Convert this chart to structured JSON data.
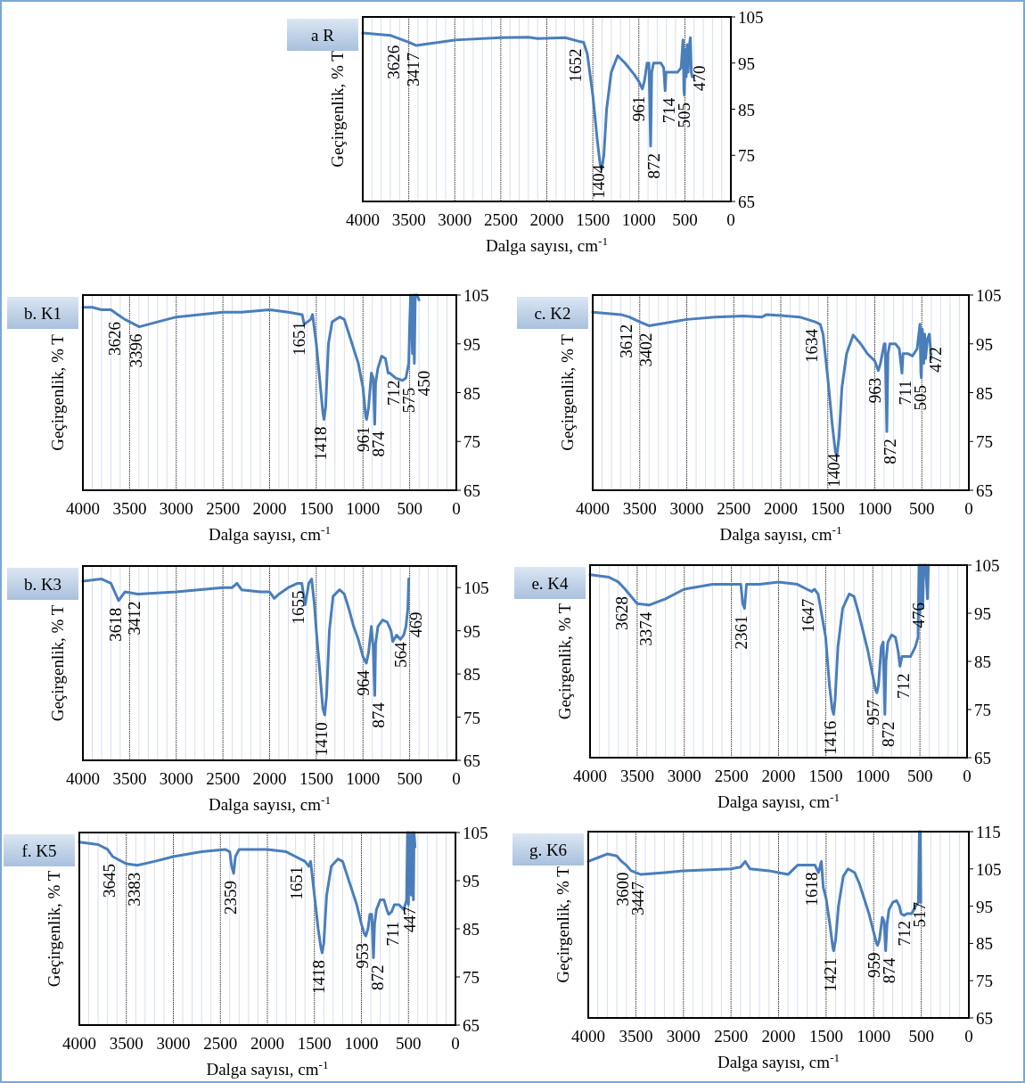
{
  "chart_data": [
    {
      "type": "line",
      "title": "a R",
      "xlabel": "Dalga sayısı, cm$^{-1}$",
      "ylabel": "Geçirgenlik, % T",
      "xlim": [
        4000,
        0
      ],
      "xticks": [
        4000,
        3500,
        3000,
        2500,
        2000,
        1500,
        1000,
        500,
        0
      ],
      "ylim": [
        65,
        105
      ],
      "yticks": [
        65,
        75,
        85,
        95,
        105
      ],
      "grid": "x",
      "color": "#4a7ebb",
      "x": [
        4000,
        3700,
        3500,
        3417,
        3000,
        2500,
        2200,
        2100,
        1800,
        1652,
        1600,
        1560,
        1500,
        1450,
        1420,
        1404,
        1380,
        1350,
        1300,
        1230,
        1150,
        1050,
        1000,
        961,
        940,
        910,
        890,
        872,
        860,
        840,
        760,
        730,
        714,
        705,
        650,
        580,
        540,
        520,
        510,
        505,
        495,
        485,
        475,
        465,
        450,
        440,
        430,
        420
      ],
      "values": [
        101.5,
        101,
        99.5,
        98.8,
        100,
        100.5,
        100.6,
        100.3,
        100.5,
        99.7,
        99.5,
        97,
        88,
        78,
        73,
        72,
        75,
        85,
        93,
        96.6,
        95,
        92.5,
        91,
        89.4,
        91,
        95,
        95,
        77,
        93,
        95,
        95,
        94,
        89,
        93,
        93,
        93,
        94,
        100,
        89,
        88,
        98,
        92,
        99,
        93,
        99,
        100.5,
        93,
        92
      ],
      "annotations": [
        {
          "text": "3626",
          "x": 3626,
          "y": 100.4
        },
        {
          "text": "3417",
          "x": 3417,
          "y": 98.8
        },
        {
          "text": "1652",
          "x": 1652,
          "y": 99.7
        },
        {
          "text": "1404",
          "x": 1404,
          "y": 72
        },
        {
          "text": "961",
          "x": 961,
          "y": 89.4
        },
        {
          "text": "872",
          "x": 872,
          "y": 77
        },
        {
          "text": "714",
          "x": 714,
          "y": 89
        },
        {
          "text": "505",
          "x": 505,
          "y": 88
        },
        {
          "text": "470",
          "x": 470,
          "y": 96
        }
      ]
    },
    {
      "type": "line",
      "title": "b. K1",
      "xlabel": "Dalga sayısı, cm$^{-1}$",
      "ylabel": "Geçirgenlik, % T",
      "xlim": [
        4000,
        0
      ],
      "xticks": [
        4000,
        3500,
        3000,
        2500,
        2000,
        1500,
        1000,
        500,
        0
      ],
      "ylim": [
        65,
        105
      ],
      "yticks": [
        65,
        75,
        85,
        95,
        105
      ],
      "grid": "x",
      "color": "#4a7ebb",
      "x": [
        4000,
        3900,
        3800,
        3700,
        3626,
        3550,
        3396,
        3200,
        3000,
        2500,
        2300,
        2000,
        1800,
        1651,
        1630,
        1560,
        1540,
        1500,
        1460,
        1430,
        1418,
        1400,
        1370,
        1330,
        1250,
        1200,
        1150,
        1100,
        1050,
        1000,
        970,
        961,
        940,
        910,
        890,
        874,
        865,
        840,
        800,
        760,
        730,
        712,
        650,
        575,
        540,
        510,
        500,
        490,
        470,
        460,
        450,
        440,
        420,
        400
      ],
      "values": [
        102.5,
        102.5,
        102,
        102,
        101,
        100,
        98.5,
        99.5,
        100.5,
        101.5,
        101.5,
        102,
        101.5,
        101,
        99,
        100,
        101,
        95,
        87,
        81,
        79.5,
        82,
        95,
        99.5,
        100.5,
        100,
        97,
        94,
        91,
        86,
        80,
        79.5,
        82,
        89,
        88,
        78.5,
        87,
        90,
        92.5,
        92,
        89,
        89,
        88,
        87.5,
        88,
        91,
        99,
        105,
        93,
        105,
        91,
        105,
        105,
        104
      ],
      "annotations": [
        {
          "text": "3626",
          "x": 3626,
          "y": 101
        },
        {
          "text": "3396",
          "x": 3396,
          "y": 98.5
        },
        {
          "text": "1651",
          "x": 1651,
          "y": 101
        },
        {
          "text": "1418",
          "x": 1418,
          "y": 79.5
        },
        {
          "text": "961",
          "x": 961,
          "y": 79.5
        },
        {
          "text": "874",
          "x": 874,
          "y": 78.5
        },
        {
          "text": "712",
          "x": 712,
          "y": 89
        },
        {
          "text": "575",
          "x": 575,
          "y": 87.5
        },
        {
          "text": "450",
          "x": 450,
          "y": 91
        }
      ]
    },
    {
      "type": "line",
      "title": "c. K2",
      "xlabel": "Dalga sayısı, cm$^{-1}$",
      "ylabel": "Geçirgenlik, % T",
      "xlim": [
        4000,
        0
      ],
      "xticks": [
        4000,
        3500,
        3000,
        2500,
        2000,
        1500,
        1000,
        500,
        0
      ],
      "ylim": [
        65,
        105
      ],
      "yticks": [
        65,
        75,
        85,
        95,
        105
      ],
      "grid": "x",
      "color": "#4a7ebb",
      "x": [
        4000,
        3700,
        3612,
        3500,
        3402,
        3000,
        2700,
        2400,
        2200,
        2150,
        2000,
        1800,
        1634,
        1580,
        1550,
        1500,
        1450,
        1420,
        1404,
        1380,
        1350,
        1300,
        1230,
        1150,
        1080,
        1000,
        963,
        940,
        900,
        890,
        872,
        860,
        840,
        780,
        740,
        711,
        700,
        650,
        600,
        550,
        520,
        510,
        505,
        495,
        480,
        470,
        460,
        440,
        420,
        400
      ],
      "values": [
        101.5,
        101,
        100.5,
        99.5,
        98.7,
        100,
        100.5,
        100.7,
        100.5,
        101,
        100.8,
        100.5,
        99.5,
        99,
        97,
        88,
        78,
        73,
        72,
        76,
        86,
        93,
        96.8,
        95,
        93,
        91.5,
        89.5,
        91,
        95,
        95,
        77,
        93,
        95,
        95,
        94,
        89,
        93,
        93,
        92.5,
        94,
        99,
        89,
        88,
        98,
        91,
        97,
        92,
        96,
        97,
        92
      ],
      "annotations": [
        {
          "text": "3612",
          "x": 3612,
          "y": 100.5
        },
        {
          "text": "3402",
          "x": 3402,
          "y": 98.7
        },
        {
          "text": "1634",
          "x": 1634,
          "y": 99.5
        },
        {
          "text": "1404",
          "x": 1404,
          "y": 72
        },
        {
          "text": "963",
          "x": 963,
          "y": 89.5
        },
        {
          "text": "872",
          "x": 872,
          "y": 77
        },
        {
          "text": "711",
          "x": 711,
          "y": 89
        },
        {
          "text": "505",
          "x": 505,
          "y": 88
        },
        {
          "text": "472",
          "x": 472,
          "y": 95.8
        }
      ]
    },
    {
      "type": "line",
      "title": "b. K3",
      "xlabel": "Dalga sayısı, cm$^{-1}$",
      "ylabel": "Geçirgenlik, % T",
      "xlim": [
        4000,
        0
      ],
      "xticks": [
        4000,
        3500,
        3000,
        2500,
        2000,
        1500,
        1000,
        500,
        0
      ],
      "ylim": [
        65,
        110
      ],
      "yticks": [
        65,
        75,
        85,
        95,
        105
      ],
      "grid": "x",
      "color": "#4a7ebb",
      "x": [
        4000,
        3800,
        3700,
        3618,
        3550,
        3412,
        3000,
        2500,
        2400,
        2350,
        2300,
        2100,
        2000,
        1950,
        1900,
        1800,
        1700,
        1655,
        1620,
        1580,
        1550,
        1520,
        1500,
        1460,
        1430,
        1410,
        1390,
        1360,
        1320,
        1250,
        1200,
        1150,
        1100,
        1050,
        1000,
        964,
        940,
        910,
        890,
        874,
        865,
        840,
        790,
        740,
        700,
        680,
        640,
        600,
        564,
        540,
        520,
        510
      ],
      "values": [
        106.5,
        107,
        106,
        102,
        104,
        103.5,
        104,
        105,
        105,
        106,
        104.5,
        104,
        104,
        102.5,
        103.5,
        105,
        106,
        106,
        101,
        106,
        107,
        101,
        95,
        85,
        77,
        75.5,
        80,
        95,
        103,
        104.5,
        103.5,
        100,
        96,
        93,
        89,
        87.5,
        90,
        96,
        91,
        80,
        92,
        96,
        97.5,
        97,
        95,
        92.5,
        94,
        93,
        94,
        96,
        100,
        107
      ],
      "annotations": [
        {
          "text": "3618",
          "x": 3618,
          "y": 102
        },
        {
          "text": "3412",
          "x": 3412,
          "y": 103.5
        },
        {
          "text": "1655",
          "x": 1655,
          "y": 106
        },
        {
          "text": "1410",
          "x": 1410,
          "y": 75.5
        },
        {
          "text": "964",
          "x": 964,
          "y": 87.5
        },
        {
          "text": "874",
          "x": 874,
          "y": 80
        },
        {
          "text": "564",
          "x": 564,
          "y": 94
        },
        {
          "text": "469",
          "x": 469,
          "y": 101
        }
      ]
    },
    {
      "type": "line",
      "title": "e. K4",
      "xlabel": "Dalga sayısı, cm$^{-1}$",
      "ylabel": "Geçirgenlik, % T",
      "xlim": [
        4000,
        0
      ],
      "xticks": [
        4000,
        3500,
        3000,
        2500,
        2000,
        1500,
        1000,
        500,
        0
      ],
      "ylim": [
        65,
        105
      ],
      "yticks": [
        65,
        75,
        85,
        95,
        105
      ],
      "grid": "x",
      "color": "#4a7ebb",
      "x": [
        4000,
        3800,
        3700,
        3628,
        3500,
        3374,
        3200,
        3000,
        2700,
        2500,
        2400,
        2380,
        2361,
        2340,
        2200,
        2000,
        1800,
        1700,
        1647,
        1620,
        1580,
        1500,
        1460,
        1430,
        1416,
        1400,
        1370,
        1320,
        1250,
        1200,
        1150,
        1100,
        1050,
        1000,
        970,
        957,
        940,
        910,
        890,
        872,
        860,
        840,
        800,
        760,
        730,
        712,
        690,
        650,
        600,
        550,
        520,
        510,
        500,
        490,
        470,
        460,
        440,
        420,
        410
      ],
      "values": [
        103,
        102.5,
        101.5,
        100,
        97,
        96.7,
        98,
        100,
        101,
        101,
        101,
        97,
        96,
        101,
        101,
        101.5,
        101,
        100,
        99.5,
        100,
        99,
        90,
        80,
        75,
        74,
        77,
        88,
        96,
        99,
        98.5,
        95,
        91,
        87,
        82,
        79,
        78.5,
        80,
        88,
        89,
        74,
        85,
        89,
        90.5,
        90,
        87,
        84,
        86,
        86,
        86,
        88,
        90,
        105,
        95,
        105,
        96,
        105,
        105,
        98,
        105
      ],
      "annotations": [
        {
          "text": "3628",
          "x": 3628,
          "y": 100
        },
        {
          "text": "3374",
          "x": 3374,
          "y": 96.7
        },
        {
          "text": "2361",
          "x": 2361,
          "y": 96
        },
        {
          "text": "1647",
          "x": 1647,
          "y": 99.5
        },
        {
          "text": "1416",
          "x": 1416,
          "y": 74
        },
        {
          "text": "957",
          "x": 957,
          "y": 78.5
        },
        {
          "text": "872",
          "x": 872,
          "y": 74
        },
        {
          "text": "712",
          "x": 712,
          "y": 84
        },
        {
          "text": "476",
          "x": 476,
          "y": 98.7
        }
      ]
    },
    {
      "type": "line",
      "title": "f. K5",
      "xlabel": "Dalga sayısı, cm$^{-1}$",
      "ylabel": "Geçirgenlik, % T",
      "xlim": [
        4000,
        0
      ],
      "xticks": [
        4000,
        3500,
        3000,
        2500,
        2000,
        1500,
        1000,
        500,
        0
      ],
      "ylim": [
        65,
        105
      ],
      "yticks": [
        65,
        75,
        85,
        95,
        105
      ],
      "grid": "x",
      "color": "#4a7ebb",
      "x": [
        4000,
        3800,
        3700,
        3645,
        3500,
        3383,
        3200,
        3000,
        2700,
        2450,
        2400,
        2380,
        2359,
        2340,
        2300,
        2000,
        1800,
        1700,
        1651,
        1600,
        1560,
        1540,
        1500,
        1460,
        1430,
        1418,
        1400,
        1370,
        1320,
        1250,
        1200,
        1150,
        1100,
        1050,
        1000,
        970,
        953,
        930,
        910,
        890,
        872,
        860,
        840,
        800,
        760,
        730,
        711,
        680,
        650,
        600,
        550,
        520,
        510,
        500,
        490,
        470,
        460,
        447,
        440,
        430
      ],
      "values": [
        103,
        102.5,
        101.5,
        100,
        98.5,
        98.2,
        99,
        100,
        101,
        101.5,
        101,
        98,
        96.5,
        100,
        101.5,
        101.5,
        101,
        100,
        99.5,
        99,
        98,
        99,
        92,
        85,
        81,
        80,
        82,
        92,
        98,
        99.5,
        99,
        96,
        93,
        90,
        86,
        84,
        83.5,
        85,
        88,
        88,
        79,
        86,
        89,
        91,
        91,
        89,
        88,
        88.5,
        90,
        90,
        89,
        91,
        105,
        90,
        105,
        92,
        105,
        91,
        105,
        102
      ],
      "annotations": [
        {
          "text": "3645",
          "x": 3645,
          "y": 100
        },
        {
          "text": "3383",
          "x": 3383,
          "y": 98.2
        },
        {
          "text": "2359",
          "x": 2359,
          "y": 96.5
        },
        {
          "text": "1651",
          "x": 1651,
          "y": 99.5
        },
        {
          "text": "1418",
          "x": 1418,
          "y": 80
        },
        {
          "text": "953",
          "x": 953,
          "y": 83.5
        },
        {
          "text": "872",
          "x": 872,
          "y": 79
        },
        {
          "text": "711",
          "x": 711,
          "y": 88
        },
        {
          "text": "447",
          "x": 447,
          "y": 91
        }
      ]
    },
    {
      "type": "line",
      "title": "g. K6",
      "xlabel": "Dalga sayısı, cm$^{-1}$",
      "ylabel": "Geçirgenlik, % T",
      "xlim": [
        4000,
        0
      ],
      "xticks": [
        4000,
        3500,
        3000,
        2500,
        2000,
        1500,
        1000,
        500,
        0
      ],
      "ylim": [
        65,
        115
      ],
      "yticks": [
        65,
        75,
        85,
        95,
        105,
        115
      ],
      "grid": "x",
      "color": "#4a7ebb",
      "x": [
        4000,
        3900,
        3800,
        3700,
        3650,
        3600,
        3550,
        3447,
        3200,
        3000,
        2500,
        2400,
        2350,
        2300,
        2100,
        2000,
        1900,
        1800,
        1700,
        1618,
        1580,
        1550,
        1530,
        1500,
        1460,
        1430,
        1421,
        1400,
        1370,
        1320,
        1270,
        1200,
        1150,
        1100,
        1050,
        1000,
        970,
        959,
        940,
        910,
        890,
        874,
        860,
        840,
        800,
        760,
        730,
        712,
        680,
        650,
        600,
        560,
        530,
        520,
        517,
        510,
        505
      ],
      "values": [
        107,
        108,
        109,
        108.5,
        107,
        106,
        104.5,
        103.5,
        104,
        104.5,
        105,
        105.5,
        107,
        105,
        104.5,
        104,
        103.5,
        106,
        106,
        106,
        104,
        107,
        100,
        97,
        90,
        84,
        83,
        86,
        95,
        103,
        105,
        104,
        101,
        97,
        93,
        88,
        85,
        84.5,
        86,
        92,
        91,
        83,
        90,
        94,
        96,
        96.5,
        95,
        93,
        92.5,
        93,
        93,
        95,
        96,
        115,
        98,
        115,
        96
      ],
      "annotations": [
        {
          "text": "3600",
          "x": 3600,
          "y": 106
        },
        {
          "text": "3447",
          "x": 3447,
          "y": 103.5
        },
        {
          "text": "1618",
          "x": 1618,
          "y": 106
        },
        {
          "text": "1421",
          "x": 1421,
          "y": 83
        },
        {
          "text": "959",
          "x": 959,
          "y": 84.5
        },
        {
          "text": "874",
          "x": 874,
          "y": 83
        },
        {
          "text": "712",
          "x": 712,
          "y": 93
        },
        {
          "text": "517",
          "x": 517,
          "y": 98
        }
      ]
    }
  ]
}
